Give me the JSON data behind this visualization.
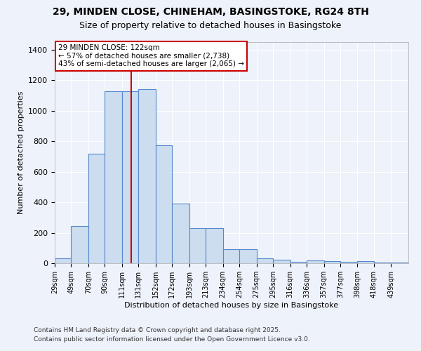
{
  "title_line1": "29, MINDEN CLOSE, CHINEHAM, BASINGSTOKE, RG24 8TH",
  "title_line2": "Size of property relative to detached houses in Basingstoke",
  "xlabel": "Distribution of detached houses by size in Basingstoke",
  "ylabel": "Number of detached properties",
  "bar_labels": [
    "29sqm",
    "49sqm",
    "70sqm",
    "90sqm",
    "111sqm",
    "131sqm",
    "152sqm",
    "172sqm",
    "193sqm",
    "213sqm",
    "234sqm",
    "254sqm",
    "275sqm",
    "295sqm",
    "316sqm",
    "336sqm",
    "357sqm",
    "377sqm",
    "398sqm",
    "418sqm",
    "439sqm"
  ],
  "bar_values": [
    30,
    245,
    720,
    1130,
    1130,
    1140,
    775,
    390,
    230,
    230,
    90,
    90,
    30,
    25,
    10,
    18,
    15,
    10,
    12,
    5,
    5
  ],
  "bar_color": "#ccddf0",
  "bar_edge_color": "#5588cc",
  "bg_color": "#eef2fa",
  "grid_color": "#ffffff",
  "vline_x": 122,
  "vline_color": "#cc0000",
  "annotation_text": "29 MINDEN CLOSE: 122sqm\n← 57% of detached houses are smaller (2,738)\n43% of semi-detached houses are larger (2,065) →",
  "annotation_box_color": "#ffffff",
  "annotation_box_edge_color": "#cc0000",
  "ylim": [
    0,
    1450
  ],
  "bin_edges": [
    29,
    49,
    70,
    90,
    111,
    131,
    152,
    172,
    193,
    213,
    234,
    254,
    275,
    295,
    316,
    336,
    357,
    377,
    398,
    418,
    439,
    460
  ],
  "footer_line1": "Contains HM Land Registry data © Crown copyright and database right 2025.",
  "footer_line2": "Contains public sector information licensed under the Open Government Licence v3.0."
}
